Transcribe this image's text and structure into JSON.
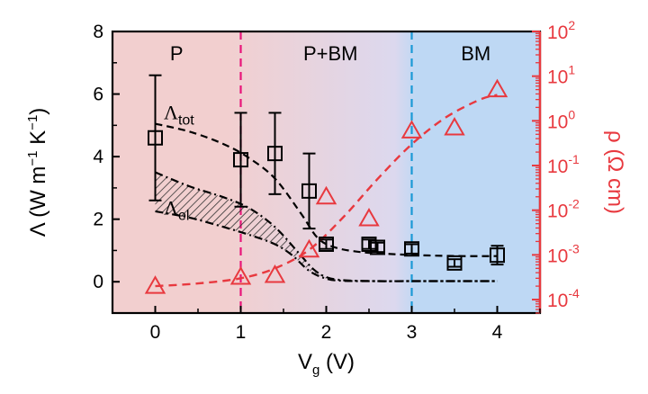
{
  "chart_data": {
    "type": "scatter",
    "x_axis": {
      "label": "V",
      "label_sub": "g",
      "label_unit": " (V)",
      "range": [
        -0.5,
        4.5
      ],
      "ticks": [
        "0",
        "1",
        "2",
        "3",
        "4"
      ]
    },
    "y_axis_left": {
      "label_parts": [
        "Λ (W m",
        "−1",
        " K",
        "−1",
        ")"
      ],
      "range": [
        -1,
        8
      ],
      "ticks": [
        "0",
        "2",
        "4",
        "6",
        "8"
      ]
    },
    "y_axis_right": {
      "label_parts": [
        "ρ (Ω cm)"
      ],
      "scale": "log",
      "range": [
        5e-05,
        100
      ],
      "tick_values": [
        0.0001,
        0.001,
        0.01,
        0.1,
        1,
        10,
        100
      ],
      "tick_labels": [
        {
          "base": "10",
          "exp": "-4"
        },
        {
          "base": "10",
          "exp": "-3"
        },
        {
          "base": "10",
          "exp": "-2"
        },
        {
          "base": "10",
          "exp": "-1"
        },
        {
          "base": "10",
          "exp": "0"
        },
        {
          "base": "10",
          "exp": "1"
        },
        {
          "base": "10",
          "exp": "2"
        }
      ],
      "color": "#e8393f"
    },
    "regions": [
      {
        "label": "P",
        "label_x": 0.25,
        "from": -0.5,
        "to": 1
      },
      {
        "label": "P+BM",
        "label_x": 2.05,
        "from": 1,
        "to": 3
      },
      {
        "label": "BM",
        "label_x": 3.75,
        "from": 3,
        "to": 4.5
      }
    ],
    "region_colors": {
      "p": "#f2cfcf",
      "mid": "#dcd8ee",
      "bm": "#bed8f4"
    },
    "dividers": [
      {
        "x": 1,
        "color": "#e8157a"
      },
      {
        "x": 3,
        "color": "#1a9ad6"
      }
    ],
    "series": [
      {
        "name": "Λtot",
        "axis": "left",
        "marker": "square",
        "x": [
          0,
          1,
          1.4,
          1.8,
          2,
          2.5,
          2.6,
          3,
          3.5,
          4
        ],
        "y": [
          4.6,
          3.9,
          4.1,
          2.9,
          1.2,
          1.2,
          1.1,
          1.05,
          0.6,
          0.85
        ],
        "err": [
          2.0,
          1.5,
          1.3,
          1.2,
          0.15,
          0.15,
          0.15,
          0.15,
          0.12,
          0.3
        ]
      },
      {
        "name": "ρ",
        "axis": "right",
        "marker": "triangle",
        "color": "#e8393f",
        "x": [
          0,
          1,
          1.4,
          1.8,
          2,
          2.5,
          3,
          3.5,
          4
        ],
        "y": [
          0.0002,
          0.00032,
          0.00035,
          0.0013,
          0.02,
          0.0065,
          0.6,
          0.7,
          5
        ]
      }
    ],
    "fits": {
      "tot": {
        "x": [
          0,
          0.4,
          0.8,
          1.1,
          1.4,
          1.7,
          1.9,
          2.1,
          2.4,
          2.8,
          3.2,
          3.6,
          4
        ],
        "y": [
          5.05,
          4.8,
          4.4,
          3.95,
          3.3,
          2.2,
          1.4,
          1.1,
          0.95,
          0.88,
          0.84,
          0.82,
          0.82
        ]
      },
      "el_upper": {
        "x": [
          0,
          0.4,
          0.8,
          1.1,
          1.4,
          1.7,
          1.85,
          2.0,
          2.2,
          2.6,
          3,
          4
        ],
        "y": [
          3.5,
          3.05,
          2.7,
          2.35,
          1.75,
          0.85,
          0.4,
          0.15,
          0.05,
          0.02,
          0.02,
          0.02
        ]
      },
      "el_lower": {
        "x": [
          0,
          0.4,
          0.8,
          1.1,
          1.4,
          1.6,
          1.8,
          2.0,
          2.2,
          2.6,
          3,
          4
        ],
        "y": [
          2.25,
          2.05,
          1.75,
          1.5,
          1.2,
          0.85,
          0.35,
          0.1,
          0.03,
          0.02,
          0.02,
          0.02
        ]
      },
      "rho": {
        "x": [
          0,
          0.5,
          1,
          1.4,
          1.8,
          2.2,
          2.6,
          3,
          3.4,
          3.8,
          4
        ],
        "y": [
          0.0002,
          0.00023,
          0.0003,
          0.0005,
          0.0013,
          0.007,
          0.05,
          0.3,
          1.2,
          3,
          3.8
        ]
      }
    },
    "annotations": [
      {
        "base": "Λ",
        "sub": "tot",
        "x": 0.1,
        "y": 5.2
      },
      {
        "base": "Λ",
        "sub": "el",
        "x": 0.1,
        "y": 2.15
      }
    ]
  }
}
